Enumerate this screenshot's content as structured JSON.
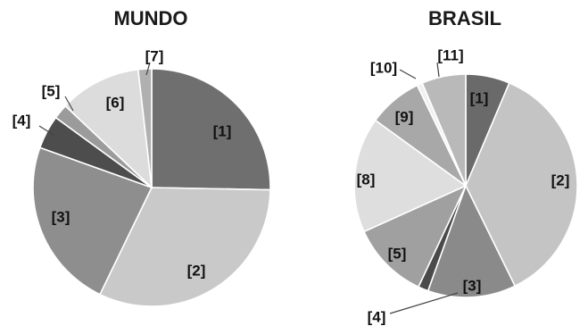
{
  "chart_data": [
    {
      "type": "pie",
      "title": "MUNDO",
      "slices": [
        {
          "label": "[1]",
          "value": 25.0,
          "color": "#6f6f6f"
        },
        {
          "label": "[2]",
          "value": 31.5,
          "color": "#c9c9c9"
        },
        {
          "label": "[3]",
          "value": 23.0,
          "color": "#8e8e8e"
        },
        {
          "label": "[4]",
          "value": 4.5,
          "color": "#4d4d4d"
        },
        {
          "label": "[5]",
          "value": 2.0,
          "color": "#9b9b9b"
        },
        {
          "label": "[6]",
          "value": 11.0,
          "color": "#dcdcdc"
        },
        {
          "label": "[7]",
          "value": 1.8,
          "color": "#b0b0b0"
        }
      ]
    },
    {
      "type": "pie",
      "title": "BRASIL",
      "slices": [
        {
          "label": "[1]",
          "value": 6.5,
          "color": "#6a6a6a"
        },
        {
          "label": "[2]",
          "value": 37.0,
          "color": "#c4c4c4"
        },
        {
          "label": "[3]",
          "value": 13.0,
          "color": "#8a8a8a"
        },
        {
          "label": "[4]",
          "value": 1.5,
          "color": "#4a4a4a"
        },
        {
          "label": "[5]",
          "value": 11.5,
          "color": "#a0a0a0"
        },
        {
          "label": "[8]",
          "value": 17.0,
          "color": "#dedede"
        },
        {
          "label": "[9]",
          "value": 8.0,
          "color": "#a8a8a8"
        },
        {
          "label": "[10]",
          "value": 0.8,
          "color": "#f0f0f0"
        },
        {
          "label": "[11]",
          "value": 6.5,
          "color": "#b9b9b9"
        }
      ]
    }
  ]
}
